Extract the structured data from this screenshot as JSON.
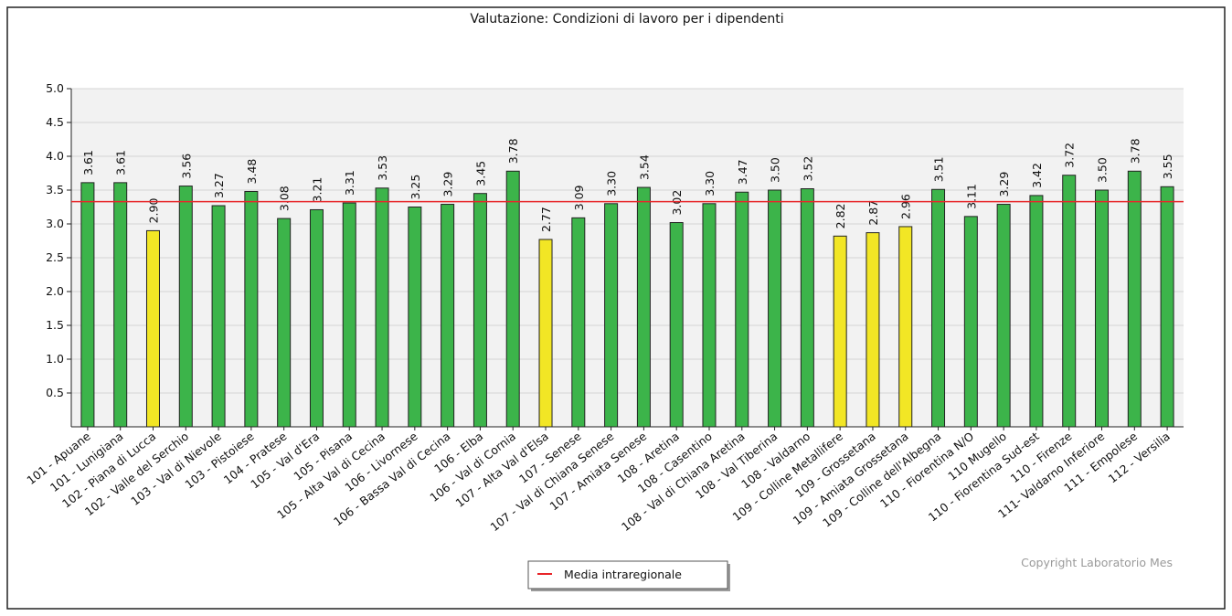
{
  "chart_data": {
    "type": "bar",
    "title": "Valutazione: Condizioni di lavoro per i dipendenti",
    "categories": [
      "101 - Apuane",
      "101 - Lunigiana",
      "102 - Piana di Lucca",
      "102 - Valle del Serchio",
      "103 - Val di Nievole",
      "103 - Pistoiese",
      "104 - Pratese",
      "105 - Val d'Era",
      "105 - Pisana",
      "105 - Alta Val di Cecina",
      "106 - Livornese",
      "106 - Bassa Val di Cecina",
      "106 - Elba",
      "106 - Val di Cornia",
      "107 - Alta Val d'Elsa",
      "107 - Senese",
      "107 - Val di Chiana Senese",
      "107 - Amiata Senese",
      "108 - Aretina",
      "108 - Casentino",
      "108 - Val di Chiana Aretina",
      "108 - Val Tiberina",
      "108 - Valdarno",
      "109 - Colline Metallifere",
      "109 - Grossetana",
      "109 - Amiata Grossetana",
      "109 - Colline dell'Albegna",
      "110 - Fiorentina N/O",
      "110 Mugello",
      "110 - Fiorentina Sud-est",
      "110 - Firenze",
      "111- Valdarno Inferiore",
      "111 - Empolese",
      "112 - Versilia"
    ],
    "values": [
      3.61,
      3.61,
      2.9,
      3.56,
      3.27,
      3.48,
      3.08,
      3.21,
      3.31,
      3.53,
      3.25,
      3.29,
      3.45,
      3.78,
      2.77,
      3.09,
      3.3,
      3.54,
      3.02,
      3.3,
      3.47,
      3.5,
      3.52,
      2.82,
      2.87,
      2.96,
      3.51,
      3.11,
      3.29,
      3.42,
      3.72,
      3.5,
      3.78,
      3.55
    ],
    "value_labels": [
      "3.61",
      "3.61",
      "2.90",
      "3.56",
      "3.27",
      "3.48",
      "3.08",
      "3.21",
      "3.31",
      "3.53",
      "3.25",
      "3.29",
      "3.45",
      "3.78",
      "2.77",
      "3.09",
      "3.30",
      "3.54",
      "3.02",
      "3.30",
      "3.47",
      "3.50",
      "3.52",
      "2.82",
      "2.87",
      "2.96",
      "3.51",
      "3.11",
      "3.29",
      "3.42",
      "3.72",
      "3.50",
      "3.78",
      "3.55"
    ],
    "colors": [
      "#3cb44a",
      "#3cb44a",
      "#f2e625",
      "#3cb44a",
      "#3cb44a",
      "#3cb44a",
      "#3cb44a",
      "#3cb44a",
      "#3cb44a",
      "#3cb44a",
      "#3cb44a",
      "#3cb44a",
      "#3cb44a",
      "#3cb44a",
      "#f2e625",
      "#3cb44a",
      "#3cb44a",
      "#3cb44a",
      "#3cb44a",
      "#3cb44a",
      "#3cb44a",
      "#3cb44a",
      "#3cb44a",
      "#f2e625",
      "#f2e625",
      "#f2e625",
      "#3cb44a",
      "#3cb44a",
      "#3cb44a",
      "#3cb44a",
      "#3cb44a",
      "#3cb44a",
      "#3cb44a",
      "#3cb44a"
    ],
    "ylim": [
      0,
      5
    ],
    "yticks": [
      0.5,
      {
        "value": 1,
        "label": "1.0"
      },
      1.5,
      {
        "value": 2,
        "label": "2.0"
      },
      2.5,
      {
        "value": 3,
        "label": "3.0"
      },
      3.5,
      {
        "value": 4,
        "label": "4.0"
      },
      4.5,
      {
        "value": 5,
        "label": "5.0"
      }
    ],
    "grid": true,
    "reference_line": {
      "name": "Media intraregionale",
      "value": 3.33,
      "color": "#e8262a"
    },
    "legend": "bottom",
    "annotation": "Copyright Laboratorio Mes"
  }
}
